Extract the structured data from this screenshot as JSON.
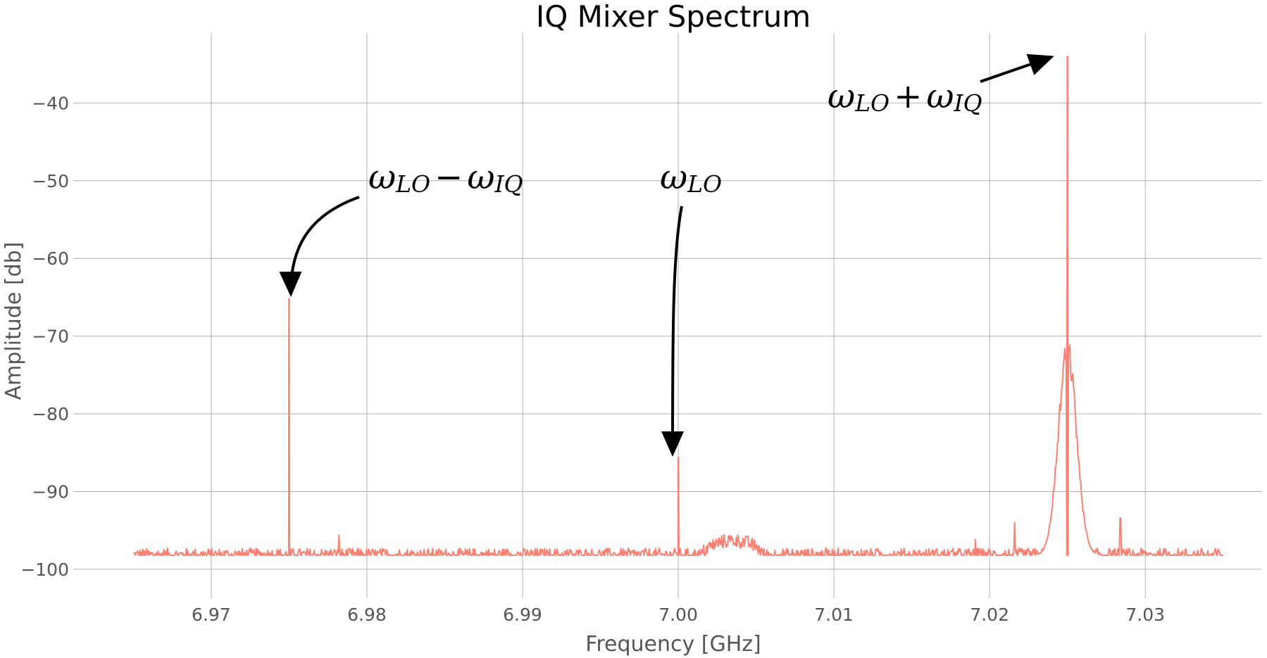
{
  "chart_data": {
    "type": "line",
    "title": "IQ Mixer Spectrum",
    "xlabel": "Frequency [GHz]",
    "ylabel": "Amplitude [db]",
    "xlim": [
      6.9615,
      7.0375
    ],
    "ylim": [
      -103,
      -31
    ],
    "grid": true,
    "x_ticks": [
      6.97,
      6.98,
      6.99,
      7.0,
      7.01,
      7.02,
      7.03
    ],
    "x_tick_labels": [
      "6.97",
      "6.98",
      "6.99",
      "7.00",
      "7.01",
      "7.02",
      "7.03"
    ],
    "y_ticks": [
      -40,
      -50,
      -60,
      -70,
      -80,
      -90,
      -100
    ],
    "y_tick_labels": [
      "−40",
      "−50",
      "−60",
      "−70",
      "−80",
      "−90",
      "−100"
    ],
    "series": [
      {
        "color": "#fa8072",
        "x_range": [
          6.965,
          7.035
        ],
        "noise_floor": -98.2,
        "noise_amplitude": 0.9,
        "peaks": [
          {
            "x": 6.975,
            "y": -65.2
          },
          {
            "x": 7.0,
            "y": -85.6
          },
          {
            "x": 7.025,
            "y": -34.0
          }
        ],
        "features": [
          {
            "kind": "bump",
            "x_start": 7.0015,
            "x_end": 7.0055,
            "y": -96.3
          },
          {
            "kind": "broad-peak",
            "x": 7.025,
            "y": -72.0,
            "width": 0.0009
          },
          {
            "kind": "spur",
            "x": 6.9782,
            "y": -95.6
          },
          {
            "kind": "spur",
            "x": 7.0191,
            "y": -96.2
          },
          {
            "kind": "spur",
            "x": 7.0216,
            "y": -94.0
          },
          {
            "kind": "spur",
            "x": 7.0284,
            "y": -93.4
          }
        ]
      }
    ],
    "annotations": [
      {
        "id": "lower-sideband",
        "label_main": "ω",
        "label_sub_1": "LO",
        "label_op": "−",
        "label_main_2": "ω",
        "label_sub_2": "IQ",
        "points_to": {
          "x": 6.975,
          "y": -65.2
        }
      },
      {
        "id": "carrier",
        "label_main": "ω",
        "label_sub_1": "LO",
        "points_to": {
          "x": 7.0,
          "y": -85.6
        }
      },
      {
        "id": "upper-sideband",
        "label_main": "ω",
        "label_sub_1": "LO",
        "label_op": "+",
        "label_main_2": "ω",
        "label_sub_2": "IQ",
        "points_to": {
          "x": 7.025,
          "y": -34.0
        }
      }
    ]
  }
}
